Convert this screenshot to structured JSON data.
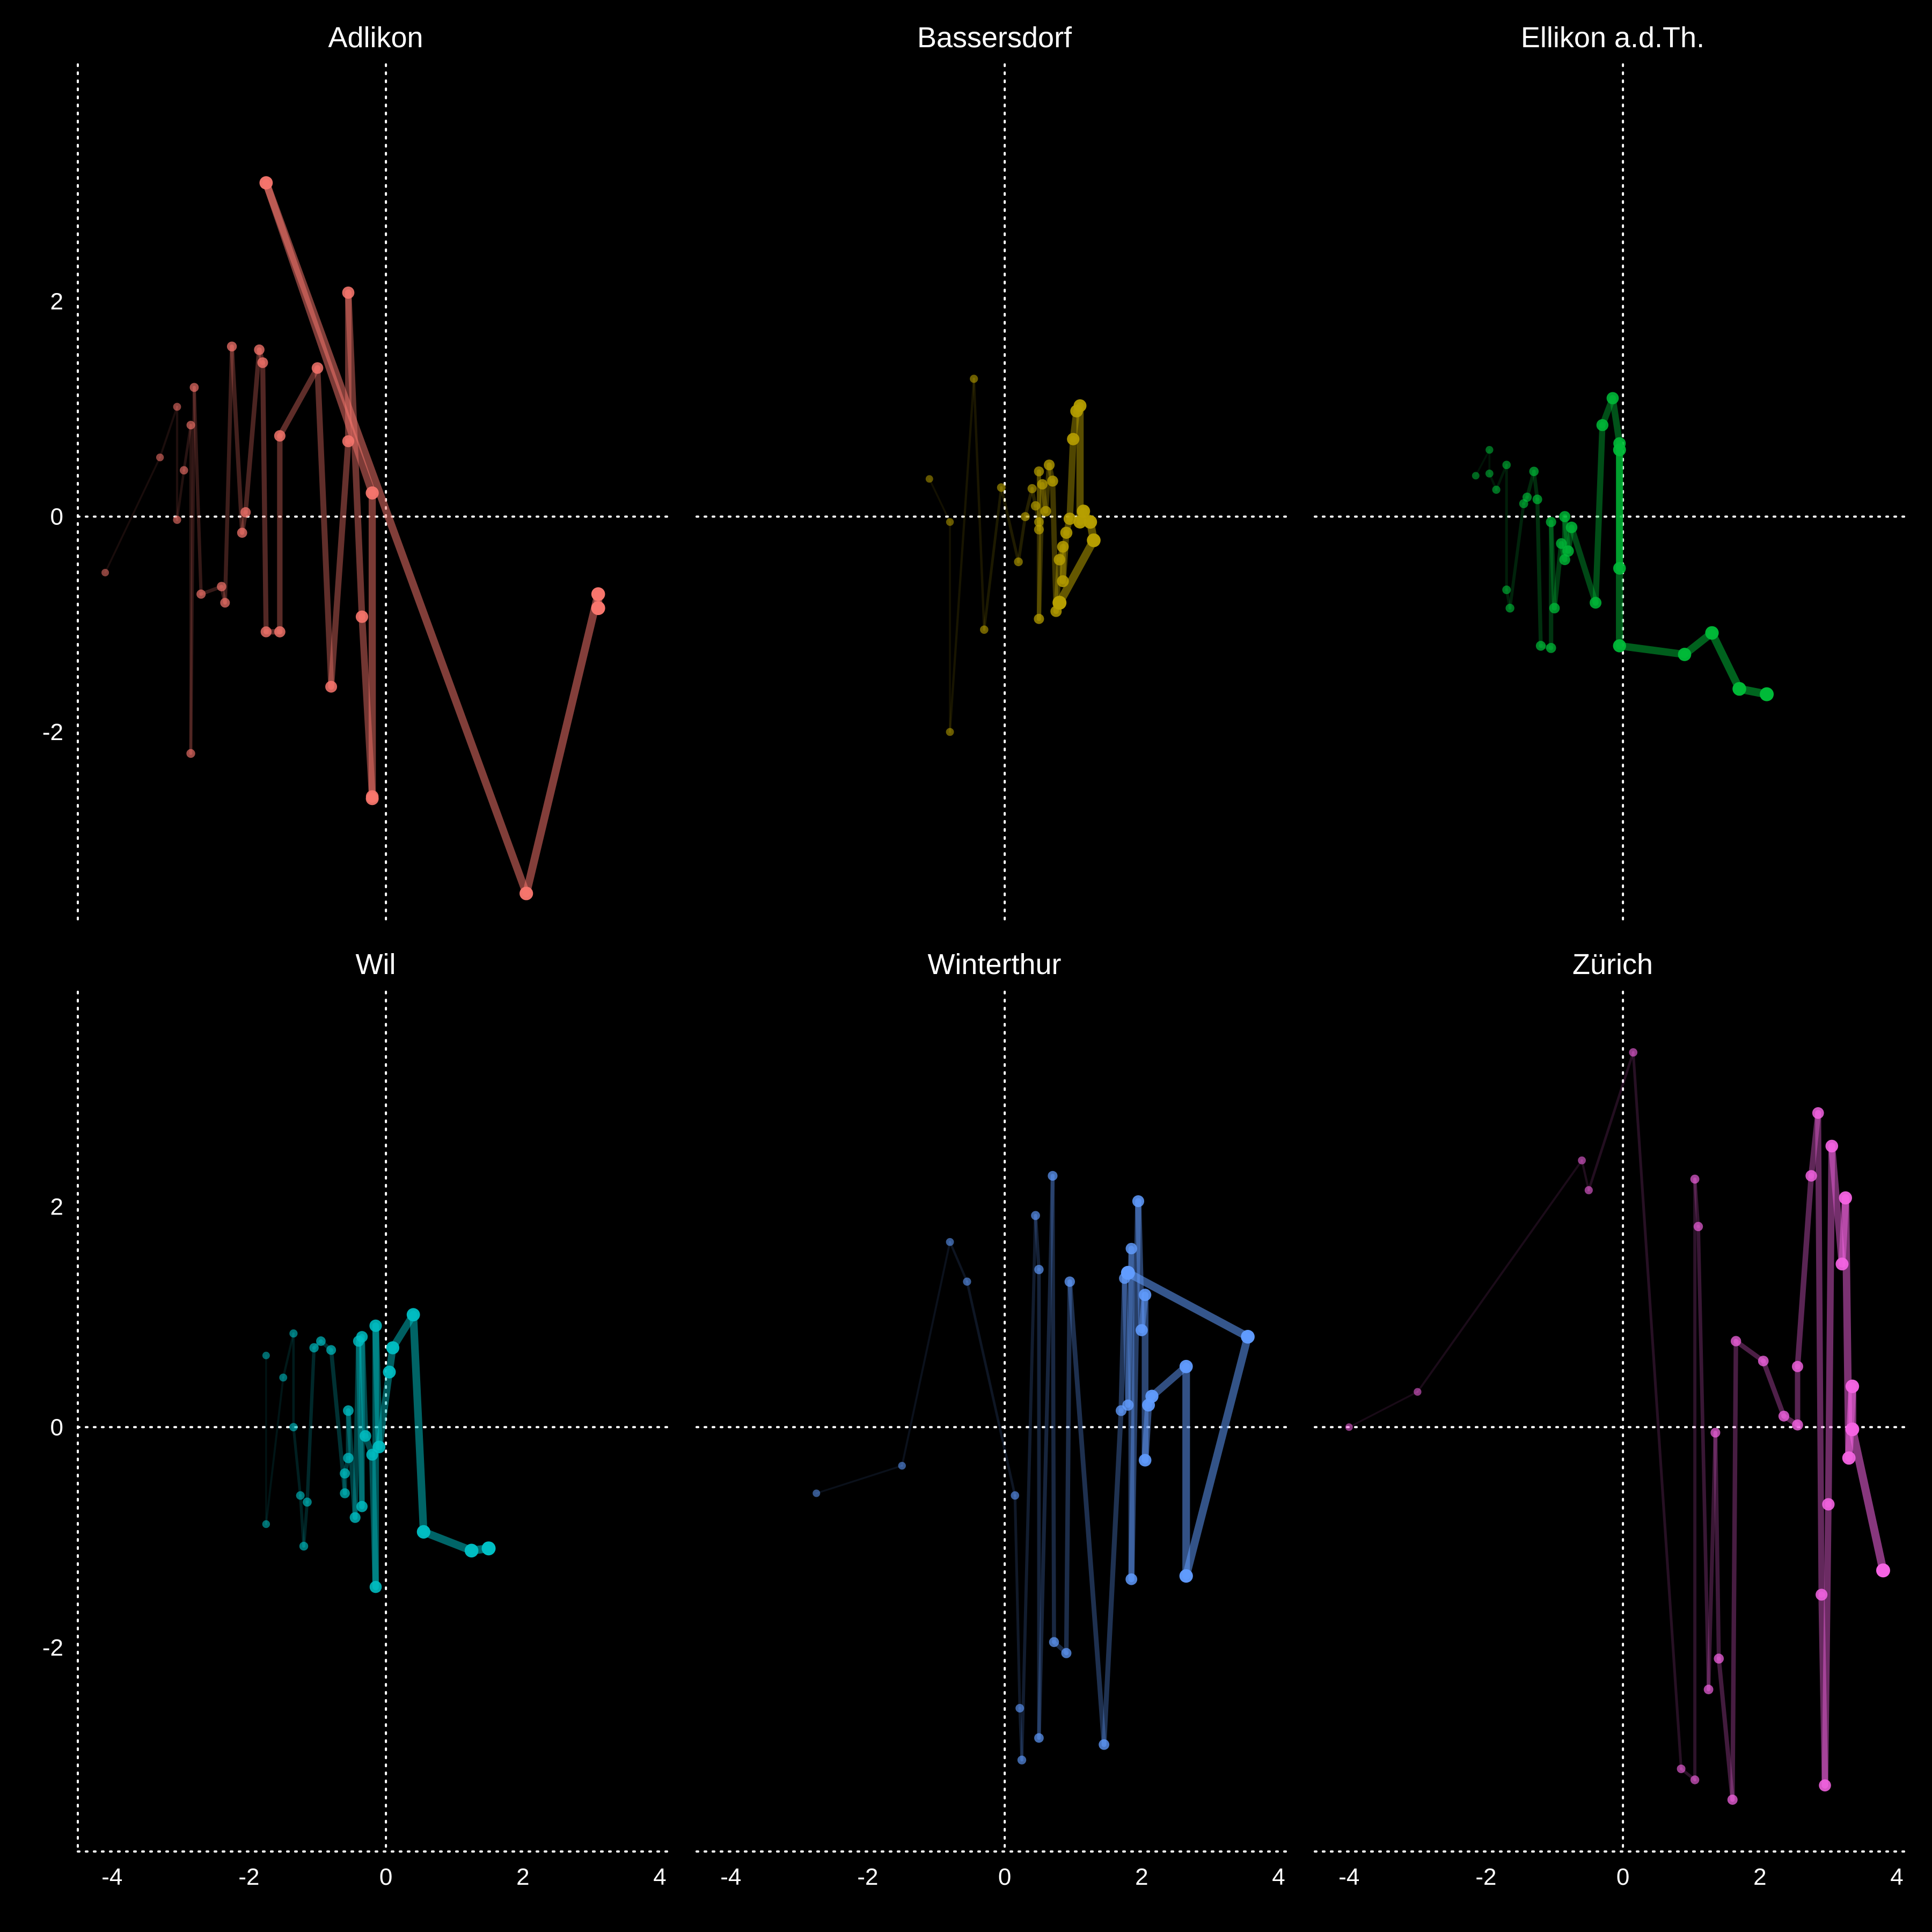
{
  "chart_data": {
    "type": "scatter",
    "facets": [
      "Adlikon",
      "Bassersdorf",
      "Ellikon a.d.Th.",
      "Wil",
      "Winterthur",
      "Zürich"
    ],
    "x_ticks": [
      -4,
      -2,
      0,
      2,
      4
    ],
    "y_ticks": [
      -2,
      0,
      2
    ],
    "xlim": [
      -4.5,
      4.2
    ],
    "ylim_top_row": [
      -3.8,
      4.2
    ],
    "ylim_bottom_row": [
      -3.85,
      3.95
    ],
    "grid": false,
    "zero_lines": true,
    "background": "#000000",
    "foreground": "#ffffff",
    "series": [
      {
        "name": "Adlikon",
        "color": "#F8766D",
        "points": [
          [
            -4.1,
            -0.52
          ],
          [
            -3.3,
            0.55
          ],
          [
            -3.05,
            1.02
          ],
          [
            -3.05,
            -0.03
          ],
          [
            -2.95,
            0.43
          ],
          [
            -2.85,
            0.85
          ],
          [
            -2.85,
            -2.2
          ],
          [
            -2.8,
            1.2
          ],
          [
            -2.7,
            -0.72
          ],
          [
            -2.4,
            -0.65
          ],
          [
            -2.35,
            -0.8
          ],
          [
            -2.25,
            1.58
          ],
          [
            -2.1,
            -0.15
          ],
          [
            -2.05,
            0.04
          ],
          [
            -1.85,
            1.55
          ],
          [
            -1.8,
            1.43
          ],
          [
            -1.75,
            -1.07
          ],
          [
            -1.55,
            -1.07
          ],
          [
            -1.55,
            0.75
          ],
          [
            -1.0,
            1.38
          ],
          [
            -0.8,
            -1.58
          ],
          [
            -0.55,
            0.7
          ],
          [
            -0.55,
            2.08
          ],
          [
            -0.35,
            -0.93
          ],
          [
            -0.2,
            -2.6
          ],
          [
            -0.2,
            -2.62
          ],
          [
            -0.2,
            0.22
          ],
          [
            -1.75,
            3.1
          ],
          [
            2.05,
            -3.5
          ],
          [
            3.1,
            -0.72
          ],
          [
            3.1,
            -0.85
          ]
        ]
      },
      {
        "name": "Bassersdorf",
        "color": "#B79F00",
        "points": [
          [
            -1.1,
            0.35
          ],
          [
            -0.8,
            -0.05
          ],
          [
            -0.8,
            -2.0
          ],
          [
            -0.45,
            1.28
          ],
          [
            -0.3,
            -1.05
          ],
          [
            -0.05,
            0.27
          ],
          [
            0.2,
            -0.42
          ],
          [
            0.3,
            0.0
          ],
          [
            0.4,
            0.26
          ],
          [
            0.45,
            0.1
          ],
          [
            0.5,
            -0.05
          ],
          [
            0.5,
            -0.12
          ],
          [
            0.5,
            0.42
          ],
          [
            0.5,
            -0.95
          ],
          [
            0.55,
            0.3
          ],
          [
            0.6,
            0.05
          ],
          [
            0.65,
            0.48
          ],
          [
            0.7,
            0.33
          ],
          [
            0.75,
            -0.88
          ],
          [
            0.8,
            -0.4
          ],
          [
            0.85,
            -0.28
          ],
          [
            0.85,
            -0.6
          ],
          [
            0.9,
            -0.15
          ],
          [
            0.95,
            -0.02
          ],
          [
            1.0,
            0.72
          ],
          [
            1.05,
            0.98
          ],
          [
            1.1,
            1.03
          ],
          [
            1.1,
            -0.05
          ],
          [
            1.15,
            0.05
          ],
          [
            1.25,
            -0.05
          ],
          [
            1.3,
            -0.22
          ],
          [
            0.8,
            -0.8
          ]
        ]
      },
      {
        "name": "Ellikon a.d.Th.",
        "color": "#00BA38",
        "points": [
          [
            -2.15,
            0.38
          ],
          [
            -1.95,
            0.62
          ],
          [
            -1.95,
            0.4
          ],
          [
            -1.85,
            0.25
          ],
          [
            -1.7,
            0.48
          ],
          [
            -1.7,
            -0.68
          ],
          [
            -1.65,
            -0.85
          ],
          [
            -1.45,
            0.12
          ],
          [
            -1.4,
            0.18
          ],
          [
            -1.3,
            0.42
          ],
          [
            -1.25,
            0.16
          ],
          [
            -1.2,
            -1.2
          ],
          [
            -1.05,
            -1.22
          ],
          [
            -1.05,
            -0.05
          ],
          [
            -1.0,
            -0.85
          ],
          [
            -0.9,
            -0.25
          ],
          [
            -0.85,
            -0.4
          ],
          [
            -0.85,
            0.0
          ],
          [
            -0.8,
            -0.32
          ],
          [
            -0.75,
            -0.1
          ],
          [
            -0.4,
            -0.8
          ],
          [
            -0.3,
            0.85
          ],
          [
            -0.15,
            1.1
          ],
          [
            -0.05,
            0.68
          ],
          [
            -0.05,
            -0.48
          ],
          [
            -0.05,
            0.62
          ],
          [
            -0.05,
            -1.2
          ],
          [
            0.9,
            -1.28
          ],
          [
            1.3,
            -1.08
          ],
          [
            1.7,
            -1.6
          ],
          [
            2.1,
            -1.65
          ]
        ]
      },
      {
        "name": "Wil",
        "color": "#00BFC4",
        "points": [
          [
            -1.75,
            0.65
          ],
          [
            -1.75,
            -0.88
          ],
          [
            -1.5,
            0.45
          ],
          [
            -1.35,
            0.85
          ],
          [
            -1.35,
            0.0
          ],
          [
            -1.25,
            -0.62
          ],
          [
            -1.2,
            -1.08
          ],
          [
            -1.15,
            -0.68
          ],
          [
            -1.05,
            0.72
          ],
          [
            -0.95,
            0.78
          ],
          [
            -0.8,
            0.7
          ],
          [
            -0.6,
            -0.6
          ],
          [
            -0.6,
            -0.42
          ],
          [
            -0.55,
            -0.28
          ],
          [
            -0.55,
            0.15
          ],
          [
            -0.45,
            -0.82
          ],
          [
            -0.4,
            0.78
          ],
          [
            -0.35,
            -0.72
          ],
          [
            -0.35,
            0.82
          ],
          [
            -0.3,
            -0.08
          ],
          [
            -0.2,
            -0.25
          ],
          [
            -0.15,
            -1.45
          ],
          [
            -0.15,
            0.92
          ],
          [
            -0.1,
            -0.18
          ],
          [
            0.05,
            0.5
          ],
          [
            0.1,
            0.72
          ],
          [
            0.4,
            1.02
          ],
          [
            0.55,
            -0.95
          ],
          [
            1.25,
            -1.12
          ],
          [
            1.5,
            -1.1
          ]
        ]
      },
      {
        "name": "Winterthur",
        "color": "#619CFF",
        "points": [
          [
            -2.75,
            -0.6
          ],
          [
            -1.5,
            -0.35
          ],
          [
            -0.8,
            1.68
          ],
          [
            -0.55,
            1.32
          ],
          [
            0.15,
            -0.62
          ],
          [
            0.22,
            -2.55
          ],
          [
            0.25,
            -3.02
          ],
          [
            0.45,
            1.92
          ],
          [
            0.5,
            1.43
          ],
          [
            0.5,
            -2.82
          ],
          [
            0.7,
            2.28
          ],
          [
            0.72,
            -1.95
          ],
          [
            0.9,
            -2.05
          ],
          [
            0.95,
            1.32
          ],
          [
            1.45,
            -2.88
          ],
          [
            1.7,
            0.15
          ],
          [
            1.75,
            1.35
          ],
          [
            1.8,
            0.2
          ],
          [
            1.85,
            1.62
          ],
          [
            1.85,
            -1.38
          ],
          [
            1.95,
            2.05
          ],
          [
            2.0,
            0.88
          ],
          [
            2.05,
            1.2
          ],
          [
            2.05,
            -0.3
          ],
          [
            2.1,
            0.2
          ],
          [
            2.15,
            0.28
          ],
          [
            2.65,
            0.55
          ],
          [
            2.65,
            -1.35
          ],
          [
            3.55,
            0.82
          ],
          [
            1.8,
            1.4
          ]
        ]
      },
      {
        "name": "Zürich",
        "color": "#F564E3",
        "points": [
          [
            -4.0,
            0.0
          ],
          [
            -3.0,
            0.32
          ],
          [
            -0.6,
            2.42
          ],
          [
            -0.5,
            2.15
          ],
          [
            0.15,
            3.4
          ],
          [
            0.85,
            -3.1
          ],
          [
            1.05,
            -3.2
          ],
          [
            1.05,
            2.25
          ],
          [
            1.1,
            1.82
          ],
          [
            1.25,
            -2.38
          ],
          [
            1.35,
            -0.05
          ],
          [
            1.4,
            -2.1
          ],
          [
            1.6,
            -3.38
          ],
          [
            1.65,
            0.78
          ],
          [
            2.05,
            0.6
          ],
          [
            2.35,
            0.1
          ],
          [
            2.55,
            0.02
          ],
          [
            2.55,
            0.55
          ],
          [
            2.75,
            2.28
          ],
          [
            2.85,
            2.85
          ],
          [
            2.9,
            -1.52
          ],
          [
            2.95,
            -3.25
          ],
          [
            3.0,
            -0.7
          ],
          [
            3.05,
            2.55
          ],
          [
            3.2,
            1.48
          ],
          [
            3.25,
            2.08
          ],
          [
            3.3,
            -0.28
          ],
          [
            3.35,
            0.37
          ],
          [
            3.35,
            -0.02
          ],
          [
            3.8,
            -1.3
          ]
        ]
      }
    ]
  }
}
